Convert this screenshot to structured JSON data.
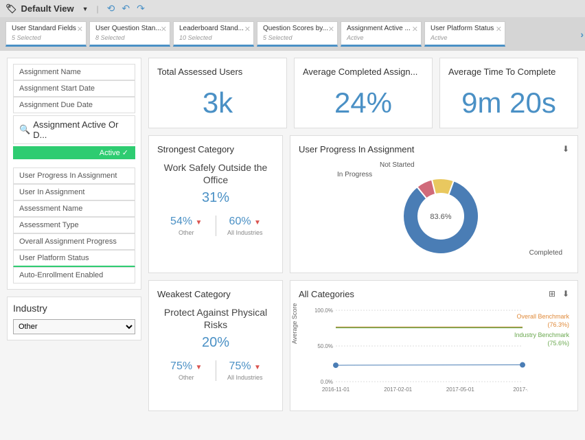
{
  "topbar": {
    "view_label": "Default View",
    "refresh_icons": [
      "⟲",
      "↻",
      "↻"
    ]
  },
  "filter_tabs": [
    {
      "label": "User Standard Fields",
      "sub": "5 Selected"
    },
    {
      "label": "User Question Stan...",
      "sub": "8 Selected"
    },
    {
      "label": "Leaderboard Stand...",
      "sub": "10 Selected"
    },
    {
      "label": "Question Scores by...",
      "sub": "5 Selected"
    },
    {
      "label": "Assignment Active ...",
      "sub": "Active"
    },
    {
      "label": "User Platform Status",
      "sub": "Active"
    }
  ],
  "sidebar": {
    "filters_top": [
      "Assignment Name",
      "Assignment Start Date",
      "Assignment Due Date"
    ],
    "search_label": "Assignment Active Or D...",
    "active_badge": "Active ✓",
    "filters_bottom": [
      "User Progress In Assignment",
      "User In Assignment",
      "Assessment Name",
      "Assessment Type",
      "Overall Assignment Progress",
      "User Platform Status",
      "Auto-Enrollment Enabled"
    ],
    "highlighted_index": 5,
    "industry": {
      "title": "Industry",
      "selected": "Other"
    }
  },
  "metrics": [
    {
      "title": "Total Assessed Users",
      "value": "3k"
    },
    {
      "title": "Average Completed Assign...",
      "value": "24%"
    },
    {
      "title": "Average Time To Complete",
      "value": "9m 20s"
    }
  ],
  "strongest": {
    "title": "Strongest Category",
    "name": "Work Safely Outside the Office",
    "pct": "31%",
    "left": {
      "val": "54%",
      "label": "Other"
    },
    "right": {
      "val": "60%",
      "label": "All Industries"
    }
  },
  "weakest": {
    "title": "Weakest Category",
    "name": "Protect Against Physical Risks",
    "pct": "20%",
    "left": {
      "val": "75%",
      "label": "Other"
    },
    "right": {
      "val": "75%",
      "label": "All Industries"
    }
  },
  "donut": {
    "title": "User Progress In Assignment",
    "slices": [
      {
        "label": "Completed",
        "value": 83.6,
        "color": "#4a7db5"
      },
      {
        "label": "Not Started",
        "value": 9.4,
        "color": "#e9c85f"
      },
      {
        "label": "In Progress",
        "value": 7.0,
        "color": "#d06a7a"
      }
    ],
    "center_label": "83.6%",
    "label_positions": {
      "not_started": "Not Started",
      "in_progress": "In Progress",
      "completed": "Completed"
    }
  },
  "line_chart": {
    "title": "All Categories",
    "y_label": "Average Score",
    "y_ticks": [
      "0.0%",
      "50.0%",
      "100.0%"
    ],
    "x_ticks": [
      "2016-11-01",
      "2017-02-01",
      "2017-05-01",
      "2017-..."
    ],
    "series": [
      {
        "name": "Overall Benchmark",
        "pct": "(76.3%)",
        "color": "#e08a3a",
        "y": 76.3
      },
      {
        "name": "Industry Benchmark",
        "pct": "(75.6%)",
        "color": "#6aa84f",
        "y": 75.6
      }
    ],
    "points": [
      {
        "x": 0,
        "y": 23
      },
      {
        "x": 1,
        "y": 23.5
      }
    ],
    "point_color": "#4a7db5",
    "background": "#ffffff",
    "grid_color": "#dddddd"
  },
  "colors": {
    "accent": "#4a90c5",
    "green": "#2ecc71",
    "red": "#d9534f"
  }
}
